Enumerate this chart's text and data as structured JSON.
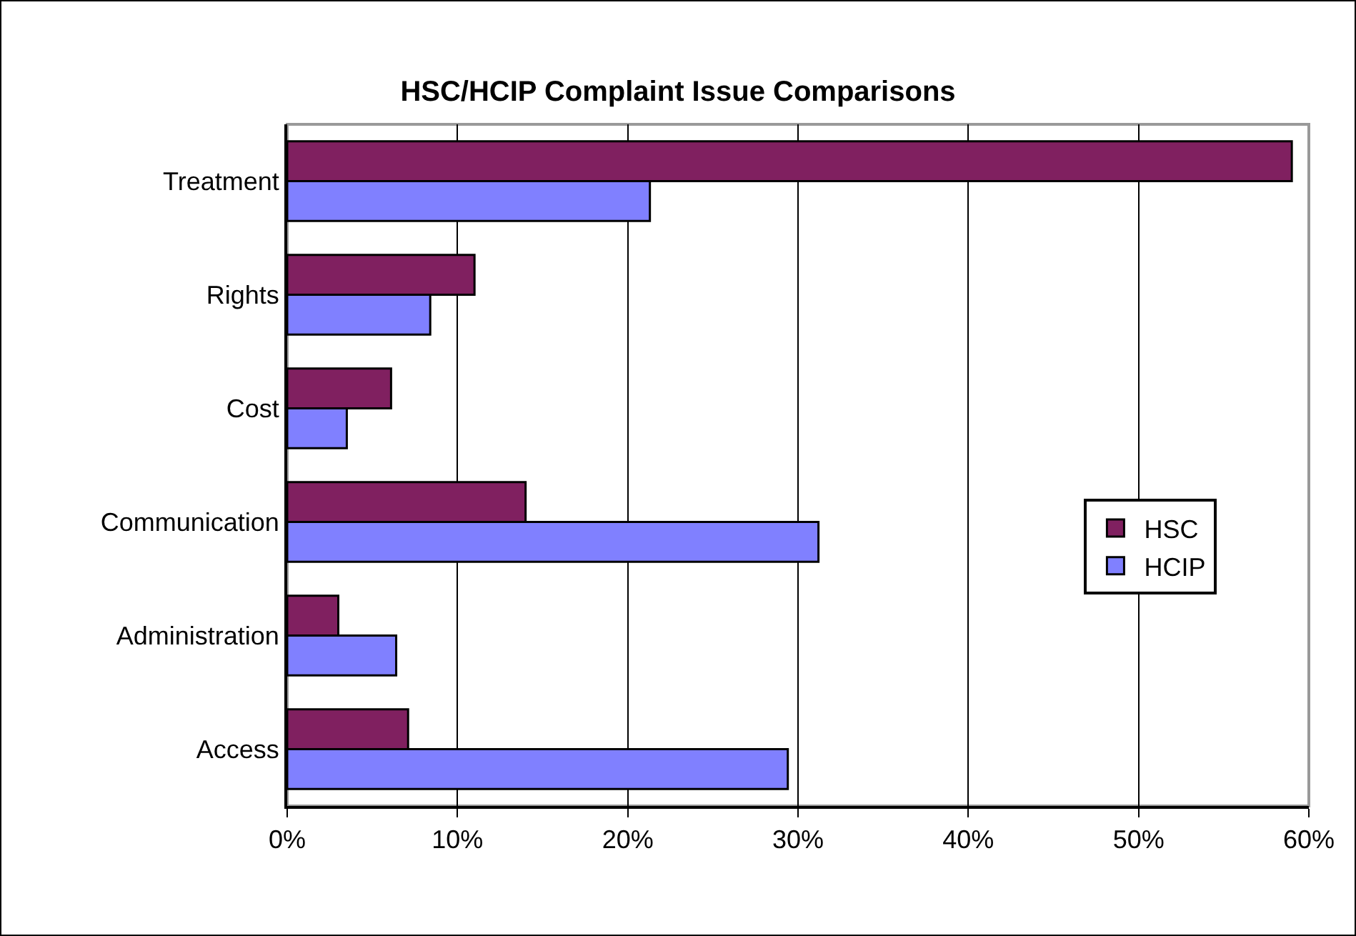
{
  "chart_data": {
    "type": "bar",
    "orientation": "horizontal",
    "title": "HSC/HCIP Complaint Issue Comparisons",
    "categories": [
      "Treatment",
      "Rights",
      "Cost",
      "Communication",
      "Administration",
      "Access"
    ],
    "series": [
      {
        "name": "HSC",
        "color": "#802060",
        "values": [
          59.0,
          11.0,
          6.1,
          14.0,
          3.0,
          7.1
        ]
      },
      {
        "name": "HCIP",
        "color": "#8080ff",
        "values": [
          21.3,
          8.4,
          3.5,
          31.2,
          6.4,
          29.4
        ]
      }
    ],
    "xlim": [
      0,
      60
    ],
    "xticks": [
      {
        "value": 0,
        "label": "0%"
      },
      {
        "value": 10,
        "label": "10%"
      },
      {
        "value": 20,
        "label": "20%"
      },
      {
        "value": 30,
        "label": "30%"
      },
      {
        "value": 40,
        "label": "40%"
      },
      {
        "value": 50,
        "label": "50%"
      },
      {
        "value": 60,
        "label": "60%"
      }
    ],
    "grid": "x",
    "legend": "right"
  }
}
